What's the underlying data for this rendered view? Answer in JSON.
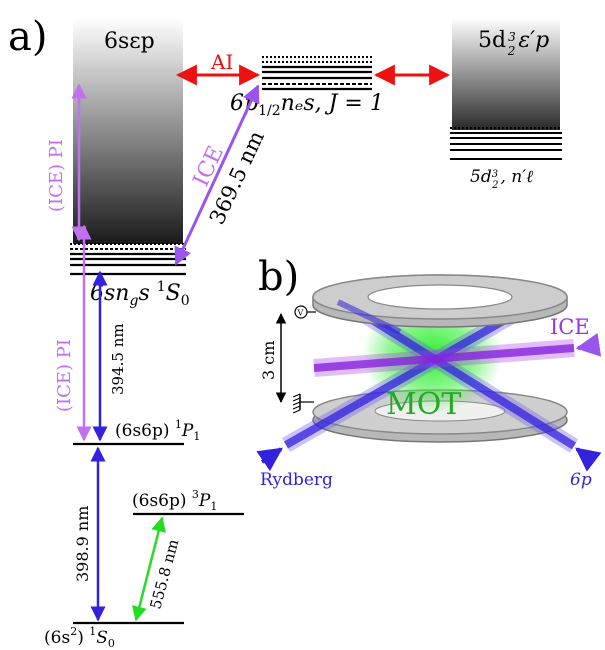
{
  "panel_a": {
    "label": "a)",
    "continua": {
      "left": "6sεp",
      "right_prefix": "5d",
      "right_frac_num": "3",
      "right_frac_den": "2",
      "right_suffix": "ε′p"
    },
    "ai": {
      "label": "AI",
      "state_prefix": "6p",
      "state_sub": "1/2",
      "state_suffix": "nₑs, J = 1"
    },
    "rydberg_series_right": {
      "prefix": "5d",
      "frac_num": "3",
      "frac_den": "2",
      "suffix": ", n′ℓ"
    },
    "ice_transition": {
      "label": "ICE",
      "wavelength": "369.5 nm"
    },
    "ice_pi_upper": "(ICE) PI",
    "ice_pi_lower": "(ICE) PI",
    "rydberg_state": {
      "main": "6sn",
      "sub": "g",
      "mid": "s ",
      "sup": "1",
      "tail": "S",
      "tail_sub": "0"
    },
    "transition_3945": "394.5 nm",
    "state_1P1": {
      "main": "(6s6p) ",
      "sup": "1",
      "tail": "P",
      "tail_sub": "1"
    },
    "state_3P1": {
      "main": "(6s6p) ",
      "sup": "3",
      "tail": "P",
      "tail_sub": "1"
    },
    "transition_3989": "398.9 nm",
    "transition_5558": "555.8 nm",
    "ground_state": {
      "main": "(6s",
      "sup2": "2",
      "mid": ") ",
      "sup": "1",
      "tail": "S",
      "tail_sub": "0"
    }
  },
  "panel_b": {
    "label": "b)",
    "voltage_symbol": "V",
    "distance": "3 cm",
    "mot": "MOT",
    "ice_beam": "ICE",
    "rydberg_beam": "Rydberg",
    "sixp_beam": "6p"
  },
  "colors": {
    "red": "#ee1111",
    "violet_light": "#c070f0",
    "violet": "#9933dd",
    "blue": "#3322dd",
    "green": "#22dd22",
    "mot_green": "#22aa22",
    "black": "#000000"
  }
}
